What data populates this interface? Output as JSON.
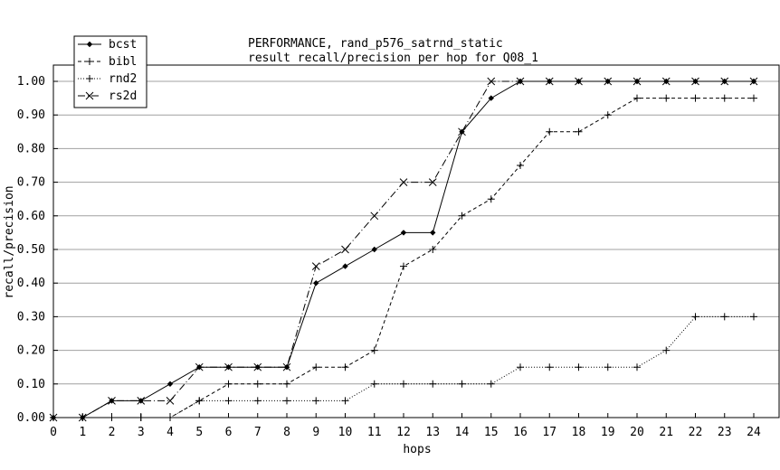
{
  "chart_data": {
    "type": "line",
    "title": "PERFORMANCE, rand_p576_satrnd_static",
    "subtitle": "result recall/precision per hop for Q08_1",
    "xlabel": "hops",
    "ylabel": "recall/precision",
    "xlim": [
      0,
      24
    ],
    "ylim": [
      0,
      1.0
    ],
    "x": [
      0,
      1,
      2,
      3,
      4,
      5,
      6,
      7,
      8,
      9,
      10,
      11,
      12,
      13,
      14,
      15,
      16,
      17,
      18,
      19,
      20,
      21,
      22,
      23,
      24
    ],
    "x_ticks": [
      "0",
      "1",
      "2",
      "3",
      "4",
      "5",
      "6",
      "7",
      "8",
      "9",
      "10",
      "11",
      "12",
      "13",
      "14",
      "15",
      "16",
      "17",
      "18",
      "19",
      "20",
      "21",
      "22",
      "23",
      "24"
    ],
    "y_ticks": [
      "0.00",
      "0.10",
      "0.20",
      "0.30",
      "0.40",
      "0.50",
      "0.60",
      "0.70",
      "0.80",
      "0.90",
      "1.00"
    ],
    "grid": "horizontal",
    "legend_position": "top-left",
    "series": [
      {
        "name": "bcst",
        "line": "solid",
        "marker": "diamond",
        "values": [
          0,
          0,
          0.05,
          0.05,
          0.1,
          0.15,
          0.15,
          0.15,
          0.15,
          0.4,
          0.45,
          0.5,
          0.55,
          0.55,
          0.85,
          0.95,
          1.0,
          1.0,
          1.0,
          1.0,
          1.0,
          1.0,
          1.0,
          1.0,
          1.0
        ]
      },
      {
        "name": "bibl",
        "line": "dashed",
        "marker": "plus",
        "values": [
          0,
          0,
          0,
          0,
          0,
          0.05,
          0.1,
          0.1,
          0.1,
          0.15,
          0.15,
          0.2,
          0.45,
          0.5,
          0.6,
          0.65,
          0.75,
          0.85,
          0.85,
          0.9,
          0.95,
          0.95,
          0.95,
          0.95,
          0.95
        ]
      },
      {
        "name": "rnd2",
        "line": "dotted",
        "marker": "plus",
        "values": [
          0,
          0,
          0,
          0,
          0,
          0.05,
          0.05,
          0.05,
          0.05,
          0.05,
          0.05,
          0.1,
          0.1,
          0.1,
          0.1,
          0.1,
          0.15,
          0.15,
          0.15,
          0.15,
          0.15,
          0.2,
          0.3,
          0.3,
          0.3
        ]
      },
      {
        "name": "rs2d",
        "line": "dashdot",
        "marker": "cross",
        "values": [
          0,
          0,
          0.05,
          0.05,
          0.05,
          0.15,
          0.15,
          0.15,
          0.15,
          0.45,
          0.5,
          0.6,
          0.7,
          0.7,
          0.85,
          1.0,
          1.0,
          1.0,
          1.0,
          1.0,
          1.0,
          1.0,
          1.0,
          1.0,
          1.0
        ]
      }
    ]
  }
}
